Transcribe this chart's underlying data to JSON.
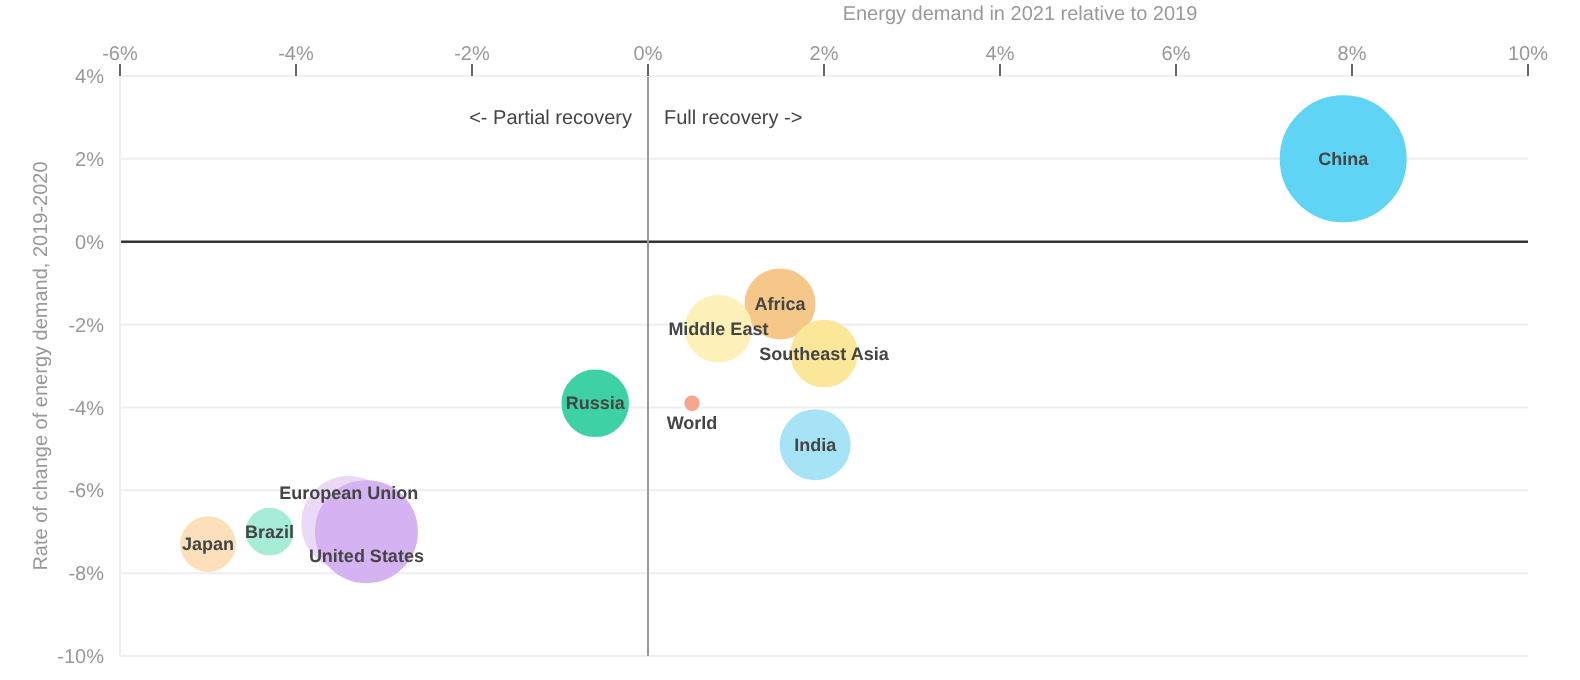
{
  "chart_data": {
    "type": "bubble",
    "xlabel": "Energy demand in 2021 relative to 2019",
    "ylabel": "Rate of change of energy demand, 2019-2020",
    "xlim": [
      -6,
      10
    ],
    "xticks": [
      {
        "value": -6,
        "label": "-6%"
      },
      {
        "value": -4,
        "label": "-4%"
      },
      {
        "value": -2,
        "label": "-2%"
      },
      {
        "value": 0,
        "label": "0%"
      },
      {
        "value": 2,
        "label": "2%"
      },
      {
        "value": 4,
        "label": "4%"
      },
      {
        "value": 6,
        "label": "6%"
      },
      {
        "value": 8,
        "label": "8%"
      },
      {
        "value": 10,
        "label": "10%"
      }
    ],
    "ylim": [
      -10,
      4
    ],
    "yticks": [
      {
        "value": -10,
        "label": "-10%"
      },
      {
        "value": -8,
        "label": "-8%"
      },
      {
        "value": -6,
        "label": "-6%"
      },
      {
        "value": -4,
        "label": "-4%"
      },
      {
        "value": -2,
        "label": "-2%"
      },
      {
        "value": 0,
        "label": "0%"
      },
      {
        "value": 2,
        "label": "2%"
      },
      {
        "value": 4,
        "label": "4%"
      }
    ],
    "grid": "y",
    "legend": false,
    "ref_lines": [
      {
        "axis": "y",
        "value": 0,
        "color": "#333333"
      },
      {
        "axis": "x",
        "value": 0,
        "color": "#999999"
      }
    ],
    "annotations": [
      "<- Partial recovery",
      "Full recovery ->"
    ],
    "series": [
      {
        "name": "China",
        "color": "#5fd4f5",
        "x": [
          7.9
        ],
        "values": [
          2.0
        ],
        "sizes": [
          1
        ]
      },
      {
        "name": "Africa",
        "color": "#f5c88a",
        "x": [
          1.5
        ],
        "values": [
          -1.5
        ],
        "sizes": [
          0.3
        ]
      },
      {
        "name": "Middle East",
        "color": "#fdf0b8",
        "x": [
          0.8
        ],
        "values": [
          -2.1
        ],
        "sizes": [
          0.27
        ]
      },
      {
        "name": "Southeast Asia",
        "color": "#fbe79a",
        "x": [
          2.0
        ],
        "values": [
          -2.7
        ],
        "sizes": [
          0.27
        ]
      },
      {
        "name": "India",
        "color": "#a7e3f7",
        "x": [
          1.9
        ],
        "values": [
          -4.9
        ],
        "sizes": [
          0.3
        ]
      },
      {
        "name": "World",
        "color": "#f5a68c",
        "x": [
          0.5
        ],
        "values": [
          -3.9
        ],
        "sizes": [
          0.01
        ]
      },
      {
        "name": "Russia",
        "color": "#3fd1a6",
        "x": [
          -0.6
        ],
        "values": [
          -3.9
        ],
        "sizes": [
          0.27
        ]
      },
      {
        "name": "Japan",
        "color": "#fde0bb",
        "x": [
          -5.0
        ],
        "values": [
          -7.3
        ],
        "sizes": [
          0.18
        ]
      },
      {
        "name": "Brazil",
        "color": "#a6ecd7",
        "x": [
          -4.3
        ],
        "values": [
          -7.0
        ],
        "sizes": [
          0.13
        ]
      },
      {
        "name": "European Union",
        "color": "#ecd9f7",
        "x": [
          -3.4
        ],
        "values": [
          -6.8
        ],
        "sizes": [
          0.55
        ]
      },
      {
        "name": "United States",
        "color": "#d5b3f2",
        "x": [
          -3.2
        ],
        "values": [
          -7.0
        ],
        "sizes": [
          0.65
        ]
      }
    ]
  }
}
